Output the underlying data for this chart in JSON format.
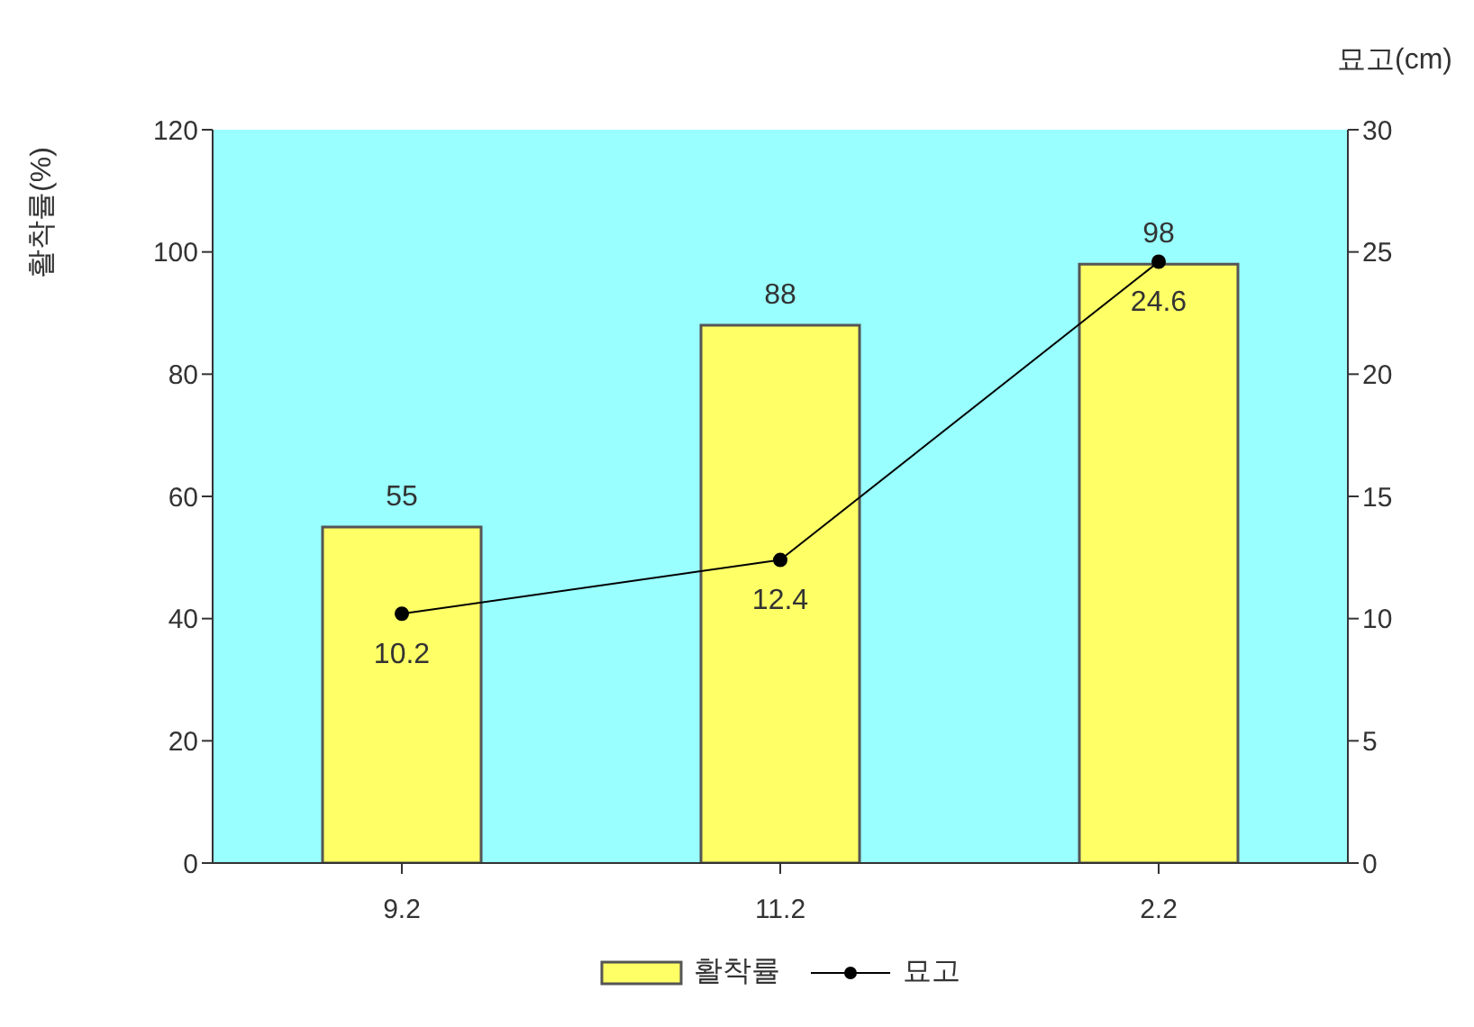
{
  "chart_data": {
    "type": "bar",
    "categories": [
      "9.2",
      "11.2",
      "2.2"
    ],
    "ylabel": "활착률(%)",
    "y2label": "묘고(cm)",
    "series": [
      {
        "name": "활착률",
        "color": "#ffff66",
        "values": [
          55,
          88,
          98
        ]
      },
      {
        "name": "묘고",
        "type": "line",
        "axis": "y2",
        "color": "#000000",
        "values": [
          10.2,
          12.4,
          24.6
        ],
        "marker": "circle"
      }
    ],
    "ylim": [
      0,
      120
    ],
    "yticks": [
      0,
      20,
      40,
      60,
      80,
      100,
      120
    ],
    "y2lim": [
      0,
      30
    ],
    "y2ticks": [
      0,
      5,
      10,
      15,
      20,
      25,
      30
    ],
    "data_labels": true,
    "legend": "bottom",
    "grid": false
  }
}
